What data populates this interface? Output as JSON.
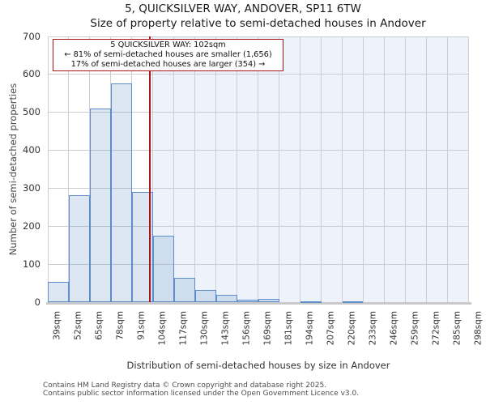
{
  "header": {
    "title": "5, QUICKSILVER WAY, ANDOVER, SP11 6TW",
    "subtitle": "Size of property relative to semi-detached houses in Andover"
  },
  "annotation": {
    "line1": "5 QUICKSILVER WAY: 102sqm",
    "line2": "← 81% of semi-detached houses are smaller (1,656)",
    "line3": "17% of semi-detached houses are larger (354) →"
  },
  "chart_data": {
    "type": "bar",
    "title": "5, QUICKSILVER WAY, ANDOVER, SP11 6TW — Size of property relative to semi-detached houses in Andover",
    "xlabel": "Distribution of semi-detached houses by size in Andover",
    "ylabel": "Number of semi-detached properties",
    "bin_labels": [
      "39sqm",
      "52sqm",
      "65sqm",
      "78sqm",
      "91sqm",
      "104sqm",
      "117sqm",
      "130sqm",
      "143sqm",
      "156sqm",
      "169sqm",
      "181sqm",
      "194sqm",
      "207sqm",
      "220sqm",
      "233sqm",
      "246sqm",
      "259sqm",
      "272sqm",
      "285sqm",
      "298sqm"
    ],
    "bin_edges_sqm": [
      39,
      52,
      65,
      78,
      91,
      104,
      117,
      130,
      143,
      156,
      169,
      181,
      194,
      207,
      220,
      233,
      246,
      259,
      272,
      285,
      298
    ],
    "values": [
      53,
      281,
      509,
      577,
      291,
      176,
      65,
      31,
      20,
      6,
      9,
      0,
      2,
      0,
      2,
      0,
      0,
      0,
      0,
      0
    ],
    "ylim": [
      0,
      700
    ],
    "yticks": [
      0,
      100,
      200,
      300,
      400,
      500,
      600,
      700
    ],
    "marker_sqm": 102,
    "marker_label": "102sqm",
    "grid": true,
    "legend": "none",
    "shade_right_of_marker": true
  },
  "footer": {
    "line1": "Contains HM Land Registry data © Crown copyright and database right 2025.",
    "line2": "Contains public sector information licensed under the Open Government Licence v3.0."
  },
  "colors": {
    "bar_fill": "#dce6f5",
    "bar_border": "#5e8ec9",
    "marker_line": "#aa1616",
    "annotation_border": "#aa1616",
    "shade": "#eef3fb",
    "grid": "#ccced2",
    "axis_band": "#c9c9c9"
  }
}
